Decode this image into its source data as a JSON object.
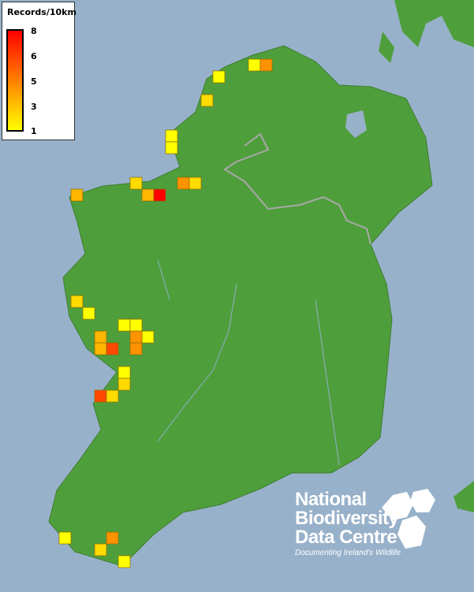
{
  "legend": {
    "title": "Records/10km",
    "ticks": [
      "8",
      "6",
      "5",
      "3",
      "1"
    ],
    "colors": {
      "low": "#ffff00",
      "mid": "#ff8000",
      "high": "#ff0000"
    }
  },
  "logo": {
    "line1": "National",
    "line2": "Biodiversity",
    "line3": "Data Centre",
    "tagline": "Documenting Ireland's Wildlife"
  },
  "colors": {
    "sea": "#98b1ca",
    "land": "#4f9e3c",
    "border": "#a8a8a8"
  },
  "records": [
    {
      "value": 1
    },
    {
      "value": 4
    },
    {
      "value": 1
    },
    {
      "value": 2
    },
    {
      "value": 1
    },
    {
      "value": 1
    },
    {
      "value": 2
    },
    {
      "value": 3
    },
    {
      "value": 8
    },
    {
      "value": 4
    },
    {
      "value": 2
    },
    {
      "value": 3
    },
    {
      "value": 2
    },
    {
      "value": 1
    },
    {
      "value": 1
    },
    {
      "value": 1
    },
    {
      "value": 1
    },
    {
      "value": 3
    },
    {
      "value": 3
    },
    {
      "value": 6
    },
    {
      "value": 4
    },
    {
      "value": 4
    },
    {
      "value": 1
    },
    {
      "value": 2
    },
    {
      "value": 6
    },
    {
      "value": 2
    },
    {
      "value": 1
    },
    {
      "value": 4
    },
    {
      "value": 2
    },
    {
      "value": 1
    }
  ]
}
